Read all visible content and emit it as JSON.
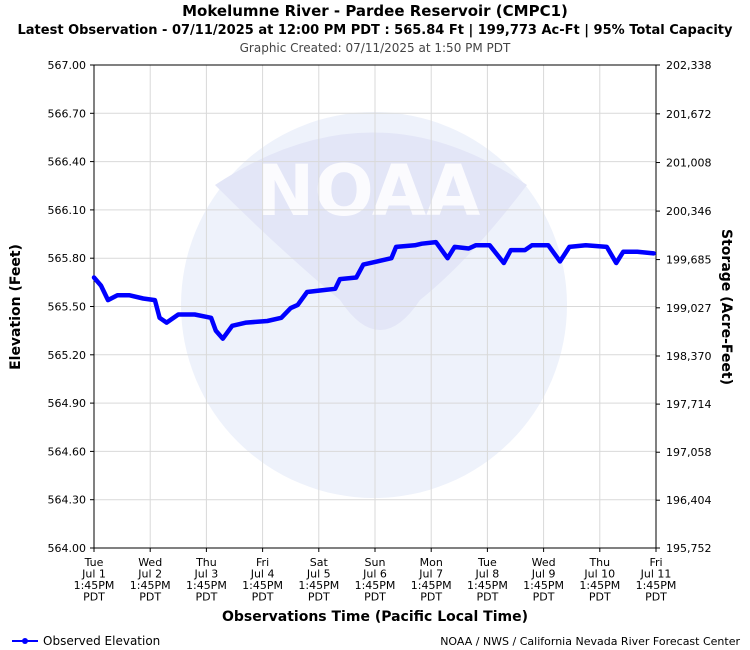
{
  "chart_data": {
    "type": "line",
    "title": "Mokelumne River - Pardee Reservoir (CMPC1)",
    "subtitle": "Latest Observation - 07/11/2025 at 12:00 PM PDT : 565.84 Ft | 199,773 Ac-Ft | 95% Total Capacity",
    "caption": "Graphic Created: 07/11/2025 at 1:50 PM PDT",
    "watermark": "NOAA",
    "ylabel": "Elevation (Feet)",
    "y2label": "Storage (Acre-Feet)",
    "xlabel": "Observations Time (Pacific Local Time)",
    "credit": "NOAA / NWS / California Nevada River Forecast Center",
    "grid": true,
    "legend": "bottom left",
    "xlim": [
      "Jul 1 1:45PM",
      "Jul 11 1:45PM"
    ],
    "xticks": [
      {
        "value": "Jul 1 1:45PM",
        "label": "Tue\nJul 1\n1:45PM\nPDT"
      },
      {
        "value": "Jul 2 1:45PM",
        "label": "Wed\nJul 2\n1:45PM\nPDT"
      },
      {
        "value": "Jul 3 1:45PM",
        "label": "Thu\nJul 3\n1:45PM\nPDT"
      },
      {
        "value": "Jul 4 1:45PM",
        "label": "Fri\nJul 4\n1:45PM\nPDT"
      },
      {
        "value": "Jul 5 1:45PM",
        "label": "Sat\nJul 5\n1:45PM\nPDT"
      },
      {
        "value": "Jul 6 1:45PM",
        "label": "Sun\nJul 6\n1:45PM\nPDT"
      },
      {
        "value": "Jul 7 1:45PM",
        "label": "Mon\nJul 7\n1:45PM\nPDT"
      },
      {
        "value": "Jul 8 1:45PM",
        "label": "Tue\nJul 8\n1:45PM\nPDT"
      },
      {
        "value": "Jul 9 1:45PM",
        "label": "Wed\nJul 9\n1:45PM\nPDT"
      },
      {
        "value": "Jul 10 1:45PM",
        "label": "Thu\nJul 10\n1:45PM\nPDT"
      },
      {
        "value": "Jul 11 1:45PM",
        "label": "Fri\nJul 11\n1:45PM\nPDT"
      }
    ],
    "ylim": [
      564,
      567
    ],
    "yticks": [
      {
        "value": 564,
        "label": "564.00"
      },
      {
        "value": 564.3,
        "label": "564.30"
      },
      {
        "value": 564.6,
        "label": "564.60"
      },
      {
        "value": 564.9,
        "label": "564.90"
      },
      {
        "value": 565.2,
        "label": "565.20"
      },
      {
        "value": 565.5,
        "label": "565.50"
      },
      {
        "value": 565.8,
        "label": "565.80"
      },
      {
        "value": 566.1,
        "label": "566.10"
      },
      {
        "value": 566.4,
        "label": "566.40"
      },
      {
        "value": 566.7,
        "label": "566.70"
      },
      {
        "value": 567,
        "label": "567.00"
      }
    ],
    "y2lim": [
      195752,
      202338
    ],
    "y2ticks": [
      {
        "value": 195752,
        "label": "195,752"
      },
      {
        "value": 196404,
        "label": "196,404"
      },
      {
        "value": 197058,
        "label": "197,058"
      },
      {
        "value": 197714,
        "label": "197,714"
      },
      {
        "value": 198370,
        "label": "198,370"
      },
      {
        "value": 199027,
        "label": "199,027"
      },
      {
        "value": 199685,
        "label": "199,685"
      },
      {
        "value": 200346,
        "label": "200,346"
      },
      {
        "value": 201008,
        "label": "201,008"
      },
      {
        "value": 201672,
        "label": "201,672"
      },
      {
        "value": 202338,
        "label": "202,338"
      }
    ],
    "x": [
      "Jul 1 1:45PM",
      "Jul 1 4:45PM",
      "Jul 1 7:45PM",
      "Jul 1 11:45PM",
      "Jul 2 4:45AM",
      "Jul 2 10:45AM",
      "Jul 2 3:45PM",
      "Jul 2 5:45PM",
      "Jul 2 8:45PM",
      "Jul 3 1:45AM",
      "Jul 3 8:45AM",
      "Jul 3 3:45PM",
      "Jul 3 5:45PM",
      "Jul 3 8:45PM",
      "Jul 4 12:45AM",
      "Jul 4 6:45AM",
      "Jul 4 3:45PM",
      "Jul 4 9:45PM",
      "Jul 5 1:45AM",
      "Jul 5 4:45AM",
      "Jul 5 8:45AM",
      "Jul 5 2:45PM",
      "Jul 5 8:45PM",
      "Jul 5 10:45PM",
      "Jul 6 5:45AM",
      "Jul 6 8:45AM",
      "Jul 6 2:45PM",
      "Jul 6 8:45PM",
      "Jul 6 10:45PM",
      "Jul 7 6:45AM",
      "Jul 7 9:45AM",
      "Jul 7 3:45PM",
      "Jul 7 8:45PM",
      "Jul 7 11:45PM",
      "Jul 8 5:45AM",
      "Jul 8 8:45AM",
      "Jul 8 2:45PM",
      "Jul 8 8:45PM",
      "Jul 8 11:45PM",
      "Jul 9 5:45AM",
      "Jul 9 8:45AM",
      "Jul 9 3:45PM",
      "Jul 9 8:45PM",
      "Jul 10 12:45AM",
      "Jul 10 7:45AM",
      "Jul 10 4:45PM",
      "Jul 10 8:45PM",
      "Jul 10 11:45PM",
      "Jul 11 5:45AM",
      "Jul 11 12:45PM"
    ],
    "series": [
      {
        "name": "Observed Elevation",
        "color": "#0000ff",
        "values": [
          565.68,
          565.63,
          565.54,
          565.57,
          565.57,
          565.55,
          565.54,
          565.43,
          565.4,
          565.45,
          565.45,
          565.43,
          565.35,
          565.3,
          565.38,
          565.4,
          565.41,
          565.43,
          565.49,
          565.51,
          565.59,
          565.6,
          565.61,
          565.67,
          565.68,
          565.76,
          565.78,
          565.8,
          565.87,
          565.88,
          565.89,
          565.9,
          565.8,
          565.87,
          565.86,
          565.88,
          565.88,
          565.77,
          565.85,
          565.85,
          565.88,
          565.88,
          565.78,
          565.87,
          565.88,
          565.87,
          565.77,
          565.84,
          565.84,
          565.83
        ]
      }
    ]
  }
}
